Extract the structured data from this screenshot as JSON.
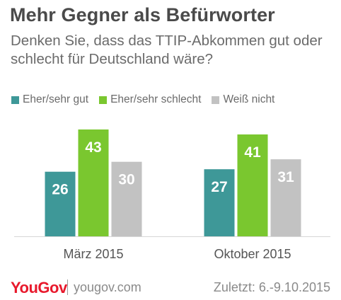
{
  "header": {
    "title": "Mehr Gegner als Befürworter",
    "subtitle": "Denken Sie, dass das TTIP-Abkommen gut oder schlecht für Deutschland wäre?"
  },
  "footer": {
    "logo": "YouGov",
    "site": "yougov.com",
    "date": "Zuletzt: 6.-9.10.2015"
  },
  "colors": {
    "good": "#3e9898",
    "bad": "#7ac72f",
    "unknown": "#c2c2c2",
    "title": "#4a4a4a",
    "text": "#6b6b6b"
  },
  "chart_data": {
    "type": "bar",
    "categories": [
      "März 2015",
      "Oktober 2015"
    ],
    "series": [
      {
        "name": "Eher/sehr gut",
        "values": [
          26,
          27
        ]
      },
      {
        "name": "Eher/sehr schlecht",
        "values": [
          43,
          41
        ]
      },
      {
        "name": "Weiß nicht",
        "values": [
          30,
          31
        ]
      }
    ],
    "ylim": [
      0,
      43
    ],
    "grid": false,
    "legend_position": "top-left",
    "data_labels": true
  }
}
